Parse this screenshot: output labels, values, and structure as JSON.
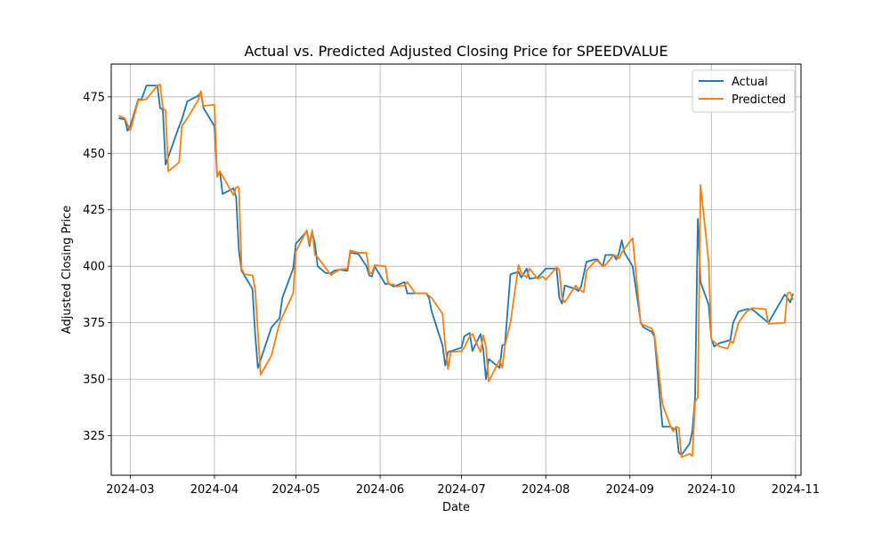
{
  "chart_data": {
    "type": "line",
    "title": "Actual vs. Predicted Adjusted Closing Price for SPEEDVALUE",
    "xlabel": "Date",
    "ylabel": "Adjusted Closing Price",
    "xlim": [
      "2024-02-23",
      "2024-11-03"
    ],
    "ylim": [
      307.5,
      489.5
    ],
    "x_ticks": [
      {
        "date": "2024-03-01",
        "label": "2024-03"
      },
      {
        "date": "2024-04-01",
        "label": "2024-04"
      },
      {
        "date": "2024-05-01",
        "label": "2024-05"
      },
      {
        "date": "2024-06-01",
        "label": "2024-06"
      },
      {
        "date": "2024-07-01",
        "label": "2024-07"
      },
      {
        "date": "2024-08-01",
        "label": "2024-08"
      },
      {
        "date": "2024-09-01",
        "label": "2024-09"
      },
      {
        "date": "2024-10-01",
        "label": "2024-10"
      },
      {
        "date": "2024-11-01",
        "label": "2024-11"
      }
    ],
    "y_ticks": [
      325,
      350,
      375,
      400,
      425,
      450,
      475
    ],
    "grid": true,
    "legend_position": "top-right",
    "series": [
      {
        "name": "Actual",
        "color": "#1f77b4",
        "points": [
          [
            "2024-02-26",
            465.5
          ],
          [
            "2024-02-28",
            465.0
          ],
          [
            "2024-02-29",
            460.0
          ],
          [
            "2024-03-01",
            462.0
          ],
          [
            "2024-03-04",
            474.0
          ],
          [
            "2024-03-05",
            473.5
          ],
          [
            "2024-03-07",
            480.0
          ],
          [
            "2024-03-11",
            480.0
          ],
          [
            "2024-03-12",
            470.0
          ],
          [
            "2024-03-13",
            469.5
          ],
          [
            "2024-03-14",
            445.0
          ],
          [
            "2024-03-19",
            462.0
          ],
          [
            "2024-03-20",
            465.0
          ],
          [
            "2024-03-22",
            473.0
          ],
          [
            "2024-03-26",
            475.5
          ],
          [
            "2024-03-27",
            477.0
          ],
          [
            "2024-03-28",
            470.0
          ],
          [
            "2024-04-01",
            462.0
          ],
          [
            "2024-04-02",
            440.0
          ],
          [
            "2024-04-03",
            442.0
          ],
          [
            "2024-04-04",
            432.0
          ],
          [
            "2024-04-08",
            434.5
          ],
          [
            "2024-04-09",
            430.5
          ],
          [
            "2024-04-10",
            407.0
          ],
          [
            "2024-04-11",
            398.0
          ],
          [
            "2024-04-15",
            390.0
          ],
          [
            "2024-04-16",
            370.0
          ],
          [
            "2024-04-17",
            355.0
          ],
          [
            "2024-04-22",
            373.0
          ],
          [
            "2024-04-25",
            377.0
          ],
          [
            "2024-04-26",
            386.0
          ],
          [
            "2024-04-30",
            399.0
          ],
          [
            "2024-05-01",
            410.0
          ],
          [
            "2024-05-05",
            415.5
          ],
          [
            "2024-05-06",
            409.0
          ],
          [
            "2024-05-07",
            415.0
          ],
          [
            "2024-05-08",
            410.0
          ],
          [
            "2024-05-09",
            400.0
          ],
          [
            "2024-05-12",
            397.0
          ],
          [
            "2024-05-14",
            397.0
          ],
          [
            "2024-05-15",
            398.0
          ],
          [
            "2024-05-17",
            398.5
          ],
          [
            "2024-05-20",
            398.0
          ],
          [
            "2024-05-21",
            406.0
          ],
          [
            "2024-05-24",
            405.5
          ],
          [
            "2024-05-27",
            400.0
          ],
          [
            "2024-05-28",
            396.0
          ],
          [
            "2024-05-29",
            395.5
          ],
          [
            "2024-05-30",
            400.0
          ],
          [
            "2024-06-01",
            396.0
          ],
          [
            "2024-06-03",
            392.0
          ],
          [
            "2024-06-04",
            392.5
          ],
          [
            "2024-06-06",
            391.0
          ],
          [
            "2024-06-07",
            391.5
          ],
          [
            "2024-06-10",
            393.0
          ],
          [
            "2024-06-11",
            388.0
          ],
          [
            "2024-06-14",
            388.0
          ],
          [
            "2024-06-18",
            388.0
          ],
          [
            "2024-06-19",
            386.0
          ],
          [
            "2024-06-20",
            380.0
          ],
          [
            "2024-06-24",
            365.0
          ],
          [
            "2024-06-25",
            356.0
          ],
          [
            "2024-06-26",
            362.0
          ],
          [
            "2024-07-01",
            364.0
          ],
          [
            "2024-07-02",
            369.0
          ],
          [
            "2024-07-04",
            370.5
          ],
          [
            "2024-07-05",
            362.5
          ],
          [
            "2024-07-08",
            370.0
          ],
          [
            "2024-07-09",
            363.0
          ],
          [
            "2024-07-10",
            350.0
          ],
          [
            "2024-07-11",
            359.0
          ],
          [
            "2024-07-15",
            355.0
          ],
          [
            "2024-07-16",
            365.0
          ],
          [
            "2024-07-17",
            365.5
          ],
          [
            "2024-07-19",
            396.5
          ],
          [
            "2024-07-22",
            397.5
          ],
          [
            "2024-07-23",
            395.0
          ],
          [
            "2024-07-25",
            399.0
          ],
          [
            "2024-07-26",
            394.5
          ],
          [
            "2024-07-29",
            395.0
          ],
          [
            "2024-07-31",
            397.5
          ],
          [
            "2024-08-01",
            399.0
          ],
          [
            "2024-08-05",
            399.0
          ],
          [
            "2024-08-06",
            386.0
          ],
          [
            "2024-08-07",
            383.5
          ],
          [
            "2024-08-08",
            391.5
          ],
          [
            "2024-08-12",
            390.0
          ],
          [
            "2024-08-13",
            389.0
          ],
          [
            "2024-08-14",
            391.0
          ],
          [
            "2024-08-16",
            402.0
          ],
          [
            "2024-08-19",
            403.0
          ],
          [
            "2024-08-20",
            403.0
          ],
          [
            "2024-08-22",
            400.0
          ],
          [
            "2024-08-23",
            405.0
          ],
          [
            "2024-08-26",
            405.0
          ],
          [
            "2024-08-27",
            403.0
          ],
          [
            "2024-08-28",
            406.0
          ],
          [
            "2024-08-29",
            411.5
          ],
          [
            "2024-08-30",
            406.0
          ],
          [
            "2024-09-02",
            400.0
          ],
          [
            "2024-09-05",
            375.0
          ],
          [
            "2024-09-06",
            373.0
          ],
          [
            "2024-09-09",
            371.0
          ],
          [
            "2024-09-10",
            369.0
          ],
          [
            "2024-09-13",
            329.0
          ],
          [
            "2024-09-16",
            329.0
          ],
          [
            "2024-09-17",
            328.0
          ],
          [
            "2024-09-18",
            328.5
          ],
          [
            "2024-09-19",
            317.5
          ],
          [
            "2024-09-20",
            316.5
          ],
          [
            "2024-09-23",
            321.5
          ],
          [
            "2024-09-24",
            327.0
          ],
          [
            "2024-09-25",
            342.0
          ],
          [
            "2024-09-26",
            421.0
          ],
          [
            "2024-09-27",
            393.0
          ],
          [
            "2024-09-30",
            383.0
          ],
          [
            "2024-10-01",
            368.0
          ],
          [
            "2024-10-02",
            364.5
          ],
          [
            "2024-10-04",
            366.0
          ],
          [
            "2024-10-07",
            367.0
          ],
          [
            "2024-10-08",
            367.5
          ],
          [
            "2024-10-09",
            375.0
          ],
          [
            "2024-10-11",
            380.0
          ],
          [
            "2024-10-14",
            381.0
          ],
          [
            "2024-10-16",
            381.0
          ],
          [
            "2024-10-22",
            375.0
          ],
          [
            "2024-10-28",
            387.5
          ],
          [
            "2024-10-29",
            386.0
          ],
          [
            "2024-10-30",
            384.0
          ],
          [
            "2024-10-31",
            387.5
          ]
        ]
      },
      {
        "name": "Predicted",
        "color": "#ff7f0e",
        "points": [
          [
            "2024-02-26",
            466.5
          ],
          [
            "2024-02-28",
            465.5
          ],
          [
            "2024-03-01",
            460.0
          ],
          [
            "2024-03-04",
            473.5
          ],
          [
            "2024-03-05",
            473.5
          ],
          [
            "2024-03-07",
            474.0
          ],
          [
            "2024-03-11",
            480.0
          ],
          [
            "2024-03-12",
            480.5
          ],
          [
            "2024-03-13",
            470.0
          ],
          [
            "2024-03-14",
            469.0
          ],
          [
            "2024-03-15",
            442.0
          ],
          [
            "2024-03-19",
            446.0
          ],
          [
            "2024-03-20",
            462.0
          ],
          [
            "2024-03-22",
            465.5
          ],
          [
            "2024-03-26",
            473.5
          ],
          [
            "2024-03-27",
            477.5
          ],
          [
            "2024-03-28",
            471.0
          ],
          [
            "2024-04-01",
            471.5
          ],
          [
            "2024-04-02",
            439.5
          ],
          [
            "2024-04-03",
            442.0
          ],
          [
            "2024-04-04",
            440.0
          ],
          [
            "2024-04-08",
            431.5
          ],
          [
            "2024-04-09",
            435.0
          ],
          [
            "2024-04-10",
            435.0
          ],
          [
            "2024-04-11",
            399.0
          ],
          [
            "2024-04-12",
            396.5
          ],
          [
            "2024-04-15",
            396.0
          ],
          [
            "2024-04-16",
            390.0
          ],
          [
            "2024-04-18",
            352.0
          ],
          [
            "2024-04-22",
            360.5
          ],
          [
            "2024-04-25",
            375.0
          ],
          [
            "2024-04-30",
            388.0
          ],
          [
            "2024-05-01",
            406.5
          ],
          [
            "2024-05-05",
            416.0
          ],
          [
            "2024-05-06",
            410.0
          ],
          [
            "2024-05-07",
            416.0
          ],
          [
            "2024-05-08",
            405.0
          ],
          [
            "2024-05-09",
            404.0
          ],
          [
            "2024-05-14",
            396.0
          ],
          [
            "2024-05-15",
            397.0
          ],
          [
            "2024-05-17",
            398.5
          ],
          [
            "2024-05-20",
            399.0
          ],
          [
            "2024-05-21",
            407.0
          ],
          [
            "2024-05-24",
            406.0
          ],
          [
            "2024-05-27",
            406.0
          ],
          [
            "2024-05-28",
            397.0
          ],
          [
            "2024-05-29",
            397.0
          ],
          [
            "2024-05-30",
            400.5
          ],
          [
            "2024-06-03",
            400.0
          ],
          [
            "2024-06-04",
            392.0
          ],
          [
            "2024-06-06",
            392.0
          ],
          [
            "2024-06-07",
            391.0
          ],
          [
            "2024-06-10",
            391.5
          ],
          [
            "2024-06-11",
            393.0
          ],
          [
            "2024-06-14",
            388.0
          ],
          [
            "2024-06-18",
            388.0
          ],
          [
            "2024-06-20",
            386.0
          ],
          [
            "2024-06-24",
            379.0
          ],
          [
            "2024-06-25",
            365.0
          ],
          [
            "2024-06-26",
            354.5
          ],
          [
            "2024-06-27",
            362.0
          ],
          [
            "2024-07-01",
            362.5
          ],
          [
            "2024-07-02",
            364.0
          ],
          [
            "2024-07-04",
            369.0
          ],
          [
            "2024-07-05",
            370.0
          ],
          [
            "2024-07-08",
            362.0
          ],
          [
            "2024-07-09",
            369.5
          ],
          [
            "2024-07-10",
            364.0
          ],
          [
            "2024-07-11",
            349.0
          ],
          [
            "2024-07-15",
            358.5
          ],
          [
            "2024-07-16",
            355.0
          ],
          [
            "2024-07-17",
            365.0
          ],
          [
            "2024-07-19",
            375.0
          ],
          [
            "2024-07-22",
            400.5
          ],
          [
            "2024-07-23",
            397.0
          ],
          [
            "2024-07-25",
            395.0
          ],
          [
            "2024-07-26",
            399.0
          ],
          [
            "2024-07-29",
            394.5
          ],
          [
            "2024-07-31",
            395.5
          ],
          [
            "2024-08-01",
            394.0
          ],
          [
            "2024-08-05",
            399.5
          ],
          [
            "2024-08-06",
            398.5
          ],
          [
            "2024-08-07",
            386.0
          ],
          [
            "2024-08-08",
            384.0
          ],
          [
            "2024-08-12",
            391.5
          ],
          [
            "2024-08-13",
            390.0
          ],
          [
            "2024-08-15",
            388.5
          ],
          [
            "2024-08-16",
            398.0
          ],
          [
            "2024-08-19",
            402.0
          ],
          [
            "2024-08-20",
            402.5
          ],
          [
            "2024-08-22",
            400.0
          ],
          [
            "2024-08-23",
            400.5
          ],
          [
            "2024-08-26",
            405.0
          ],
          [
            "2024-08-27",
            404.5
          ],
          [
            "2024-08-28",
            403.5
          ],
          [
            "2024-08-29",
            406.0
          ],
          [
            "2024-09-01",
            411.0
          ],
          [
            "2024-09-02",
            412.5
          ],
          [
            "2024-09-05",
            374.5
          ],
          [
            "2024-09-06",
            374.0
          ],
          [
            "2024-09-09",
            372.5
          ],
          [
            "2024-09-10",
            370.0
          ],
          [
            "2024-09-13",
            339.0
          ],
          [
            "2024-09-16",
            329.0
          ],
          [
            "2024-09-17",
            327.0
          ],
          [
            "2024-09-18",
            329.0
          ],
          [
            "2024-09-19",
            328.5
          ],
          [
            "2024-09-20",
            315.5
          ],
          [
            "2024-09-23",
            317.0
          ],
          [
            "2024-09-24",
            316.0
          ],
          [
            "2024-09-25",
            340.0
          ],
          [
            "2024-09-26",
            342.0
          ],
          [
            "2024-09-27",
            436.0
          ],
          [
            "2024-09-30",
            402.0
          ],
          [
            "2024-10-01",
            367.5
          ],
          [
            "2024-10-02",
            366.5
          ],
          [
            "2024-10-04",
            364.5
          ],
          [
            "2024-10-07",
            363.5
          ],
          [
            "2024-10-08",
            367.0
          ],
          [
            "2024-10-09",
            366.0
          ],
          [
            "2024-10-11",
            375.0
          ],
          [
            "2024-10-14",
            380.0
          ],
          [
            "2024-10-16",
            381.5
          ],
          [
            "2024-10-21",
            381.0
          ],
          [
            "2024-10-22",
            374.5
          ],
          [
            "2024-10-28",
            375.0
          ],
          [
            "2024-10-29",
            388.0
          ],
          [
            "2024-10-30",
            388.5
          ],
          [
            "2024-10-31",
            385.5
          ]
        ]
      }
    ]
  }
}
